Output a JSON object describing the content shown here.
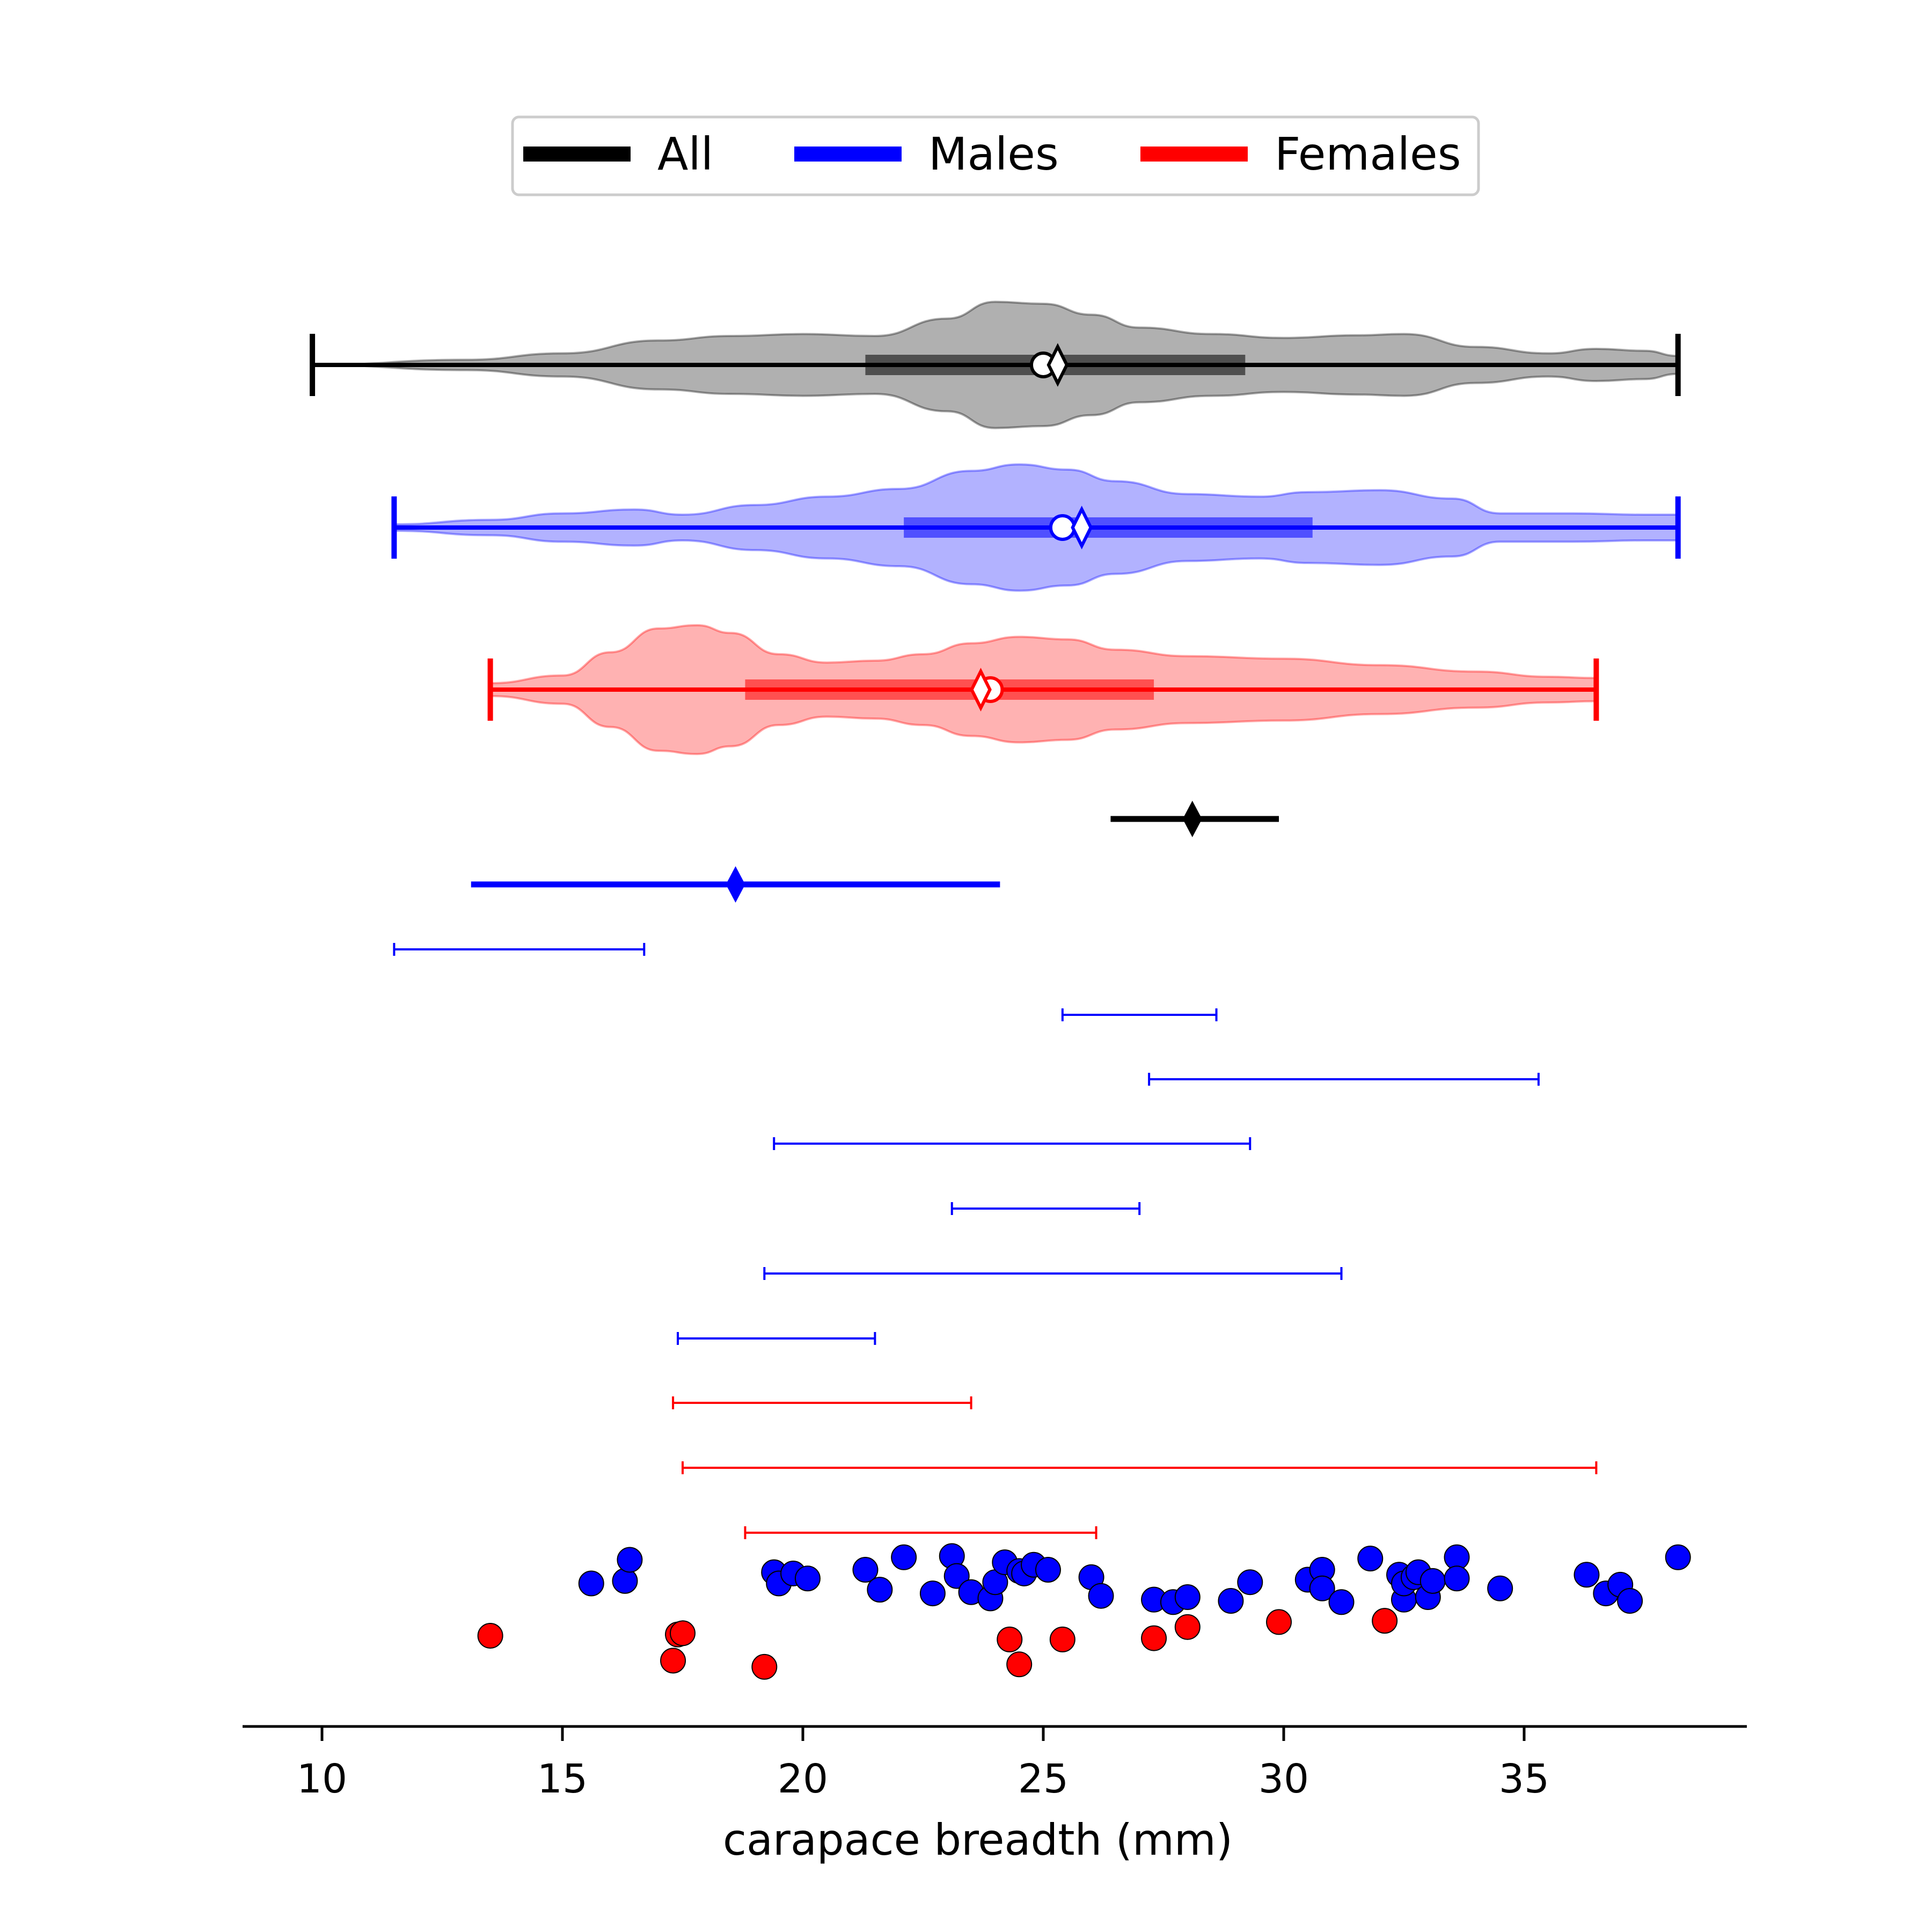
{
  "chart_data": {
    "type": "violin",
    "xlabel": "carapace breadth (mm)",
    "xlim": [
      8.4,
      39.6
    ],
    "xticks": [
      10,
      15,
      20,
      25,
      30,
      35
    ],
    "grid": false,
    "legend": {
      "placement": "top-center",
      "entries": [
        {
          "label": "All",
          "color": "#000000"
        },
        {
          "label": "Males",
          "color": "#0000ff"
        },
        {
          "label": "Females",
          "color": "#ff0000"
        }
      ]
    },
    "violins": [
      {
        "group": "All",
        "color": "#000000",
        "fill": "#b0b0b0",
        "min": 9.8,
        "max": 38.2,
        "q1": 21.3,
        "q3": 29.2,
        "median": 25.3,
        "mean": 25.0,
        "density_x": [
          9.8,
          13,
          15,
          17,
          18.5,
          20,
          21.5,
          23,
          24,
          25,
          26,
          27,
          28.5,
          30,
          31.5,
          32.5,
          34,
          35.5,
          36.5,
          37.5,
          38.2
        ],
        "density_w": [
          0.0,
          0.08,
          0.18,
          0.38,
          0.45,
          0.48,
          0.45,
          0.72,
          0.98,
          0.95,
          0.78,
          0.58,
          0.48,
          0.42,
          0.46,
          0.48,
          0.28,
          0.18,
          0.25,
          0.22,
          0.14
        ]
      },
      {
        "group": "Males",
        "color": "#0000ff",
        "fill": "#b2b2ff",
        "min": 11.5,
        "max": 38.2,
        "q1": 22.1,
        "q3": 30.6,
        "median": 25.8,
        "mean": 25.4,
        "density_x": [
          11.5,
          13.5,
          15,
          16.5,
          17.5,
          19,
          20.5,
          22,
          23.5,
          24.5,
          25.5,
          26.5,
          28,
          29.5,
          30.5,
          32,
          33.5,
          34.5,
          36,
          37.5,
          38.2
        ],
        "density_w": [
          0.05,
          0.12,
          0.22,
          0.28,
          0.2,
          0.35,
          0.48,
          0.6,
          0.88,
          0.98,
          0.9,
          0.72,
          0.52,
          0.48,
          0.55,
          0.58,
          0.45,
          0.22,
          0.22,
          0.2,
          0.2
        ]
      },
      {
        "group": "Females",
        "color": "#ff0000",
        "fill": "#ffb2b2",
        "min": 13.5,
        "max": 36.5,
        "q1": 18.8,
        "q3": 27.3,
        "median": 23.7,
        "mean": 23.9,
        "density_x": [
          13.5,
          15,
          16,
          17,
          17.8,
          18.5,
          19.5,
          20.5,
          21.5,
          22.5,
          23.5,
          24.5,
          25.5,
          26.5,
          28,
          30,
          32,
          34,
          35.5,
          36.5
        ],
        "density_w": [
          0.1,
          0.22,
          0.58,
          0.95,
          1.0,
          0.88,
          0.55,
          0.42,
          0.45,
          0.55,
          0.72,
          0.82,
          0.78,
          0.62,
          0.52,
          0.48,
          0.38,
          0.28,
          0.2,
          0.18
        ]
      }
    ],
    "summary_intervals": [
      {
        "color": "#000000",
        "low": 26.4,
        "high": 29.9,
        "center": 28.1
      },
      {
        "color": "#0000ff",
        "low": 13.1,
        "high": 24.1,
        "center": 18.6
      }
    ],
    "ranges": [
      {
        "color": "#0000ff",
        "low": 11.5,
        "high": 16.7
      },
      {
        "color": "#0000ff",
        "low": 25.4,
        "high": 28.6
      },
      {
        "color": "#0000ff",
        "low": 27.2,
        "high": 35.3
      },
      {
        "color": "#0000ff",
        "low": 19.4,
        "high": 29.3
      },
      {
        "color": "#0000ff",
        "low": 23.1,
        "high": 27.0
      },
      {
        "color": "#0000ff",
        "low": 19.2,
        "high": 31.2
      },
      {
        "color": "#0000ff",
        "low": 17.4,
        "high": 21.5
      },
      {
        "color": "#ff0000",
        "low": 17.3,
        "high": 23.5
      },
      {
        "color": "#ff0000",
        "low": 17.5,
        "high": 36.5
      },
      {
        "color": "#ff0000",
        "low": 18.8,
        "high": 26.1
      }
    ],
    "points": [
      {
        "group": "Males",
        "color": "#0000ff",
        "x": [
          15.6,
          16.3,
          16.4,
          19.4,
          19.5,
          19.8,
          20.1,
          21.3,
          21.6,
          22.1,
          22.7,
          23.1,
          23.2,
          23.5,
          23.9,
          24.0,
          24.2,
          24.5,
          24.6,
          24.8,
          25.1,
          26.0,
          26.2,
          27.3,
          27.7,
          28.0,
          28.9,
          29.3,
          30.5,
          30.8,
          30.8,
          31.2,
          31.8,
          32.4,
          32.5,
          32.5,
          32.7,
          32.8,
          33.0,
          33.1,
          33.6,
          33.6,
          34.5,
          36.3,
          36.7,
          37.0,
          37.2,
          38.2
        ],
        "jitter": [
          1272,
          1270,
          1253,
          1263,
          1272,
          1264,
          1268,
          1261,
          1277,
          1251,
          1280,
          1250,
          1266,
          1279,
          1284,
          1271,
          1255,
          1262,
          1264,
          1257,
          1261,
          1267,
          1282,
          1285,
          1287,
          1283,
          1286,
          1271,
          1269,
          1261,
          1276,
          1287,
          1252,
          1265,
          1285,
          1272,
          1267,
          1263,
          1283,
          1270,
          1251,
          1268,
          1276,
          1265,
          1280,
          1273,
          1286,
          1251
        ]
      },
      {
        "group": "Females",
        "color": "#ff0000",
        "x": [
          13.5,
          17.3,
          17.4,
          17.5,
          19.2,
          24.3,
          24.5,
          25.4,
          27.3,
          28.0,
          29.9,
          32.1
        ],
        "jitter": [
          1314,
          1334,
          1313,
          1312,
          1339,
          1317,
          1337,
          1317,
          1316,
          1307,
          1303,
          1302
        ]
      }
    ]
  }
}
